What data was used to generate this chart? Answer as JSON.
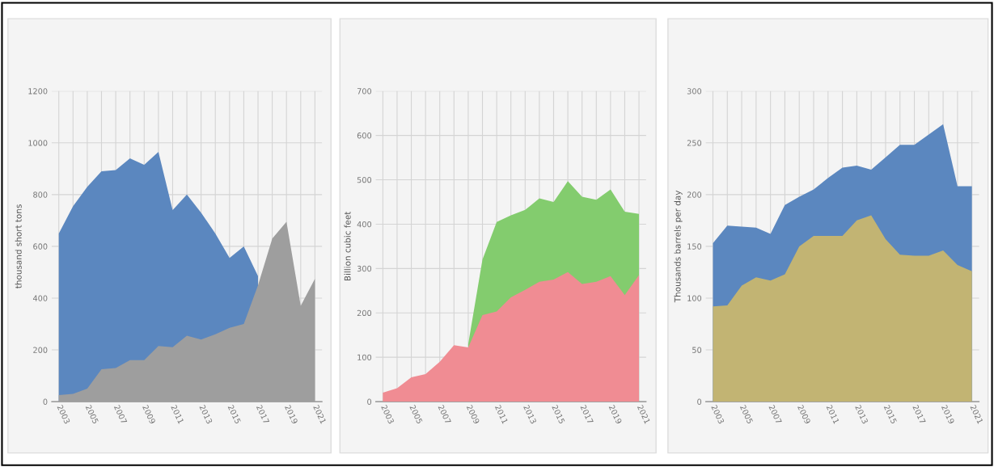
{
  "chart_data": [
    {
      "type": "area",
      "ylabel": "thousand short tons",
      "categories": [
        "2003",
        null,
        "2005",
        null,
        "2007",
        null,
        "2009",
        null,
        "2011",
        null,
        "2013",
        null,
        "2015",
        null,
        "2017",
        null,
        "2019",
        null,
        "2021"
      ],
      "ylim": [
        0,
        1200
      ],
      "yticks": [
        0,
        200,
        400,
        600,
        800,
        1000,
        1200
      ],
      "grid": true,
      "series": [
        {
          "color": "#5b87bf",
          "values": [
            650,
            755,
            830,
            890,
            895,
            940,
            915,
            965,
            740,
            800,
            730,
            650,
            555,
            600,
            485,
            null,
            null,
            null,
            null
          ]
        },
        {
          "color": "#9e9e9e",
          "values": [
            25,
            30,
            50,
            125,
            130,
            160,
            160,
            215,
            210,
            255,
            240,
            260,
            285,
            300,
            450,
            630,
            695,
            370,
            475
          ]
        }
      ]
    },
    {
      "type": "area",
      "ylabel": "Billion cubic feet",
      "categories": [
        "2003",
        null,
        "2005",
        null,
        "2007",
        null,
        "2009",
        null,
        "2011",
        null,
        "2013",
        null,
        "2015",
        null,
        "2017",
        null,
        "2019",
        null,
        "2021"
      ],
      "ylim": [
        0,
        700
      ],
      "yticks": [
        0,
        100,
        200,
        300,
        400,
        500,
        600,
        700
      ],
      "grid": true,
      "series": [
        {
          "color": "#83cc6e",
          "values": [
            null,
            null,
            null,
            null,
            null,
            null,
            130,
            320,
            405,
            420,
            432,
            458,
            450,
            497,
            462,
            455,
            478,
            428,
            423
          ]
        },
        {
          "color": "#f08c93",
          "values": [
            20,
            30,
            55,
            62,
            90,
            127,
            122,
            195,
            203,
            235,
            252,
            270,
            275,
            292,
            265,
            270,
            283,
            240,
            285
          ]
        }
      ]
    },
    {
      "type": "area",
      "ylabel": "Thousands barrels per day",
      "categories": [
        "2003",
        null,
        "2005",
        null,
        "2007",
        null,
        "2009",
        null,
        "2011",
        null,
        "2013",
        null,
        "2015",
        null,
        "2017",
        null,
        "2019",
        null,
        "2021"
      ],
      "ylim": [
        0,
        300
      ],
      "yticks": [
        0,
        50,
        100,
        150,
        200,
        250,
        300
      ],
      "grid": true,
      "series": [
        {
          "color": "#5b87bf",
          "values": [
            153,
            170,
            169,
            168,
            162,
            190,
            198,
            205,
            216,
            226,
            228,
            224,
            236,
            248,
            248,
            258,
            268,
            208,
            208
          ]
        },
        {
          "color": "#c2b473",
          "values": [
            92,
            93,
            112,
            120,
            117,
            123,
            150,
            160,
            160,
            160,
            175,
            180,
            157,
            142,
            141,
            141,
            146,
            132,
            126
          ]
        }
      ]
    }
  ]
}
